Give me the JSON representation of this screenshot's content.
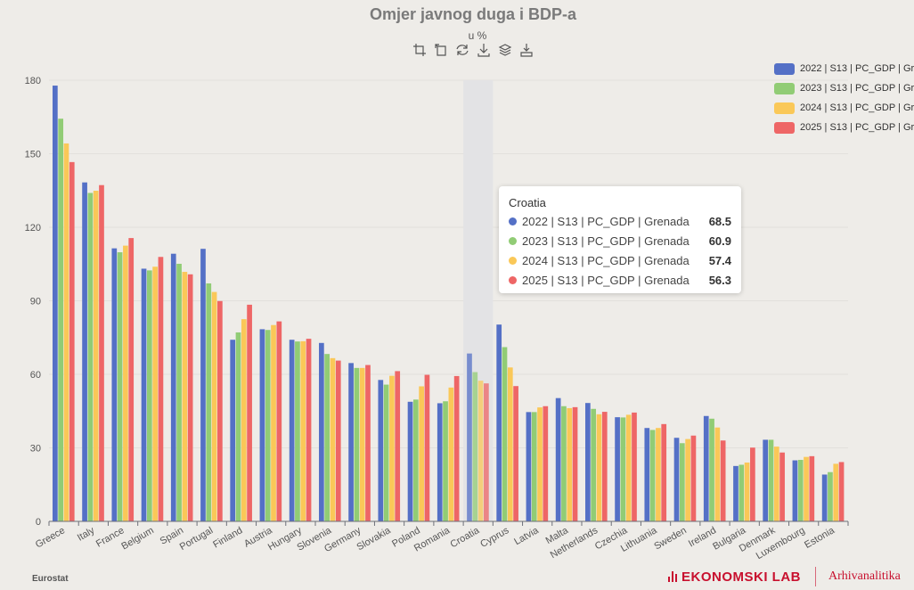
{
  "title": "Omjer javnog duga i BDP-a",
  "subtitle": "u %",
  "source": "Eurostat",
  "brand": {
    "primary": "EKONOMSKI LAB",
    "secondary": "Arhivanalitika"
  },
  "toolbox": [
    "zoom-icon",
    "zoom-reset-icon",
    "restore-icon",
    "download-data-icon",
    "stack-icon",
    "save-image-icon"
  ],
  "chart_data": {
    "type": "bar",
    "title": "Omjer javnog duga i BDP-a",
    "subtitle": "u %",
    "xlabel": "",
    "ylabel": "",
    "ylim": [
      0,
      180
    ],
    "yticks": [
      0,
      30,
      60,
      90,
      120,
      150,
      180
    ],
    "grid": true,
    "legend_position": "top-right",
    "categories": [
      "Greece",
      "Italy",
      "France",
      "Belgium",
      "Spain",
      "Portugal",
      "Finland",
      "Austria",
      "Hungary",
      "Slovenia",
      "Germany",
      "Slovakia",
      "Poland",
      "Romania",
      "Croatia",
      "Cyprus",
      "Latvia",
      "Malta",
      "Netherlands",
      "Czechia",
      "Lithuania",
      "Sweden",
      "Ireland",
      "Bulgaria",
      "Denmark",
      "Luxembourg",
      "Estonia"
    ],
    "highlighted_category": "Croatia",
    "series": [
      {
        "name": "2022 | S13 | PC_GDP | Grenada",
        "color": "#5470c6",
        "values": [
          177.8,
          138.3,
          111.4,
          103.1,
          109.2,
          111.2,
          74.1,
          78.4,
          74.1,
          72.8,
          64.6,
          57.7,
          48.8,
          48.2,
          68.5,
          80.3,
          44.6,
          50.3,
          48.3,
          42.5,
          38.1,
          34.1,
          43.0,
          22.6,
          33.3,
          24.9,
          19.1
        ]
      },
      {
        "name": "2023 | S13 | PC_GDP | Grenada",
        "color": "#91cc75",
        "values": [
          164.3,
          134.0,
          109.8,
          102.4,
          105.1,
          97.1,
          77.1,
          78.1,
          73.4,
          68.3,
          62.6,
          55.8,
          49.7,
          49.0,
          60.9,
          71.1,
          44.6,
          47.0,
          45.9,
          42.4,
          37.3,
          31.9,
          41.9,
          23.1,
          33.3,
          25.1,
          20.1
        ]
      },
      {
        "name": "2024 | S13 | PC_GDP | Grenada",
        "color": "#fac858",
        "values": [
          154.2,
          134.9,
          112.5,
          103.9,
          101.8,
          93.6,
          82.5,
          80.1,
          73.5,
          66.6,
          62.6,
          59.4,
          55.1,
          54.6,
          57.4,
          62.8,
          46.5,
          46.2,
          43.7,
          43.5,
          38.1,
          33.6,
          38.3,
          24.0,
          30.5,
          26.3,
          23.5
        ]
      },
      {
        "name": "2025 | S13 | PC_GDP | Grenada",
        "color": "#ee6666",
        "values": [
          146.6,
          137.2,
          115.6,
          107.9,
          100.8,
          89.9,
          88.4,
          81.6,
          74.5,
          65.6,
          63.8,
          61.3,
          59.8,
          59.3,
          56.3,
          55.2,
          47.0,
          46.6,
          44.7,
          44.4,
          39.7,
          35.0,
          33.0,
          30.1,
          28.1,
          26.6,
          24.2
        ]
      }
    ]
  },
  "tooltip": {
    "title": "Croatia",
    "rows": [
      {
        "label": "2022 | S13 | PC_GDP | Grenada",
        "value": "68.5",
        "color": "#5470c6"
      },
      {
        "label": "2023 | S13 | PC_GDP | Grenada",
        "value": "60.9",
        "color": "#91cc75"
      },
      {
        "label": "2024 | S13 | PC_GDP | Grenada",
        "value": "57.4",
        "color": "#fac858"
      },
      {
        "label": "2025 | S13 | PC_GDP | Grenada",
        "value": "56.3",
        "color": "#ee6666"
      }
    ]
  }
}
